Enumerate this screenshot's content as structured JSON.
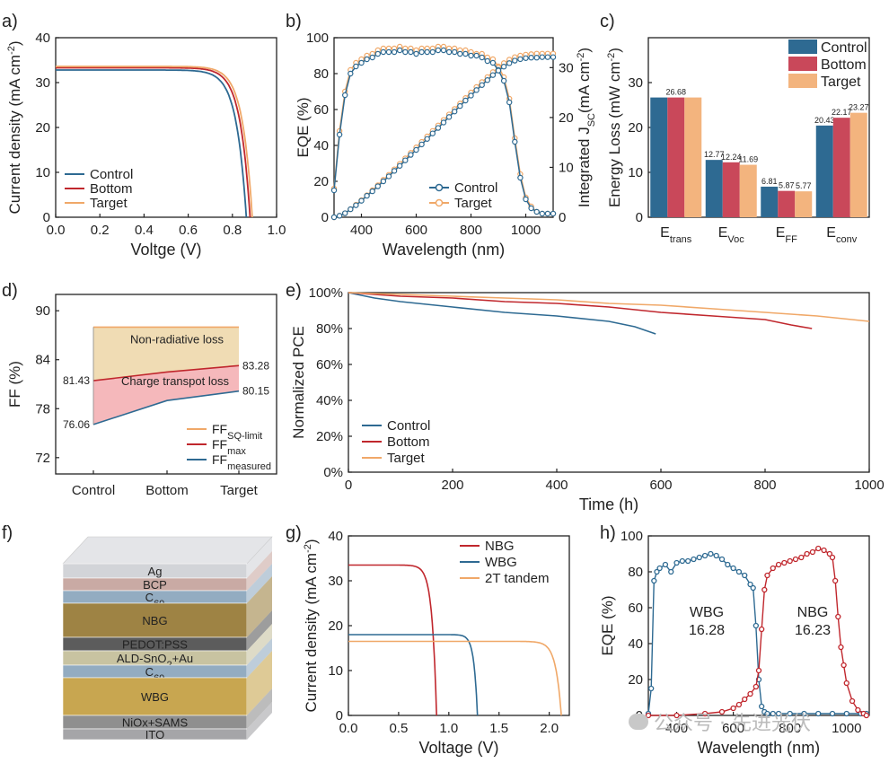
{
  "colors": {
    "control": "#2e6a92",
    "bottom": "#c0272d",
    "target": "#f0a868",
    "axis": "#222222"
  },
  "watermark": "公众号 · 先进光伏",
  "chart_data": [
    {
      "id": "a",
      "panel_label": "a)",
      "type": "line",
      "xlabel": "Voltge (V)",
      "ylabel_parts": [
        "Current density (mA cm",
        "-2",
        ")"
      ],
      "xlim": [
        0,
        1.0
      ],
      "ylim": [
        0,
        40
      ],
      "xticks": [
        "0.0",
        "0.2",
        "0.4",
        "0.6",
        "0.8",
        "1.0"
      ],
      "yticks": [
        "0",
        "10",
        "20",
        "30",
        "40"
      ],
      "legend": {
        "position": "bottom-left"
      },
      "series": [
        {
          "name": "Control",
          "color": "#2e6a92",
          "jsc": 32.8,
          "voc": 0.863,
          "knee": 0.68
        },
        {
          "name": "Bottom",
          "color": "#c0272d",
          "jsc": 33.3,
          "voc": 0.88,
          "knee": 0.72
        },
        {
          "name": "Target",
          "color": "#f0a868",
          "jsc": 33.6,
          "voc": 0.89,
          "knee": 0.75
        }
      ]
    },
    {
      "id": "b",
      "panel_label": "b)",
      "type": "line",
      "xlabel": "Wavelength (nm)",
      "ylabel": "EQE (%)",
      "y2label_parts": [
        "Integrated J",
        "SC",
        "(mA cm",
        "-2",
        ")"
      ],
      "xlim": [
        300,
        1100
      ],
      "ylim": [
        0,
        100
      ],
      "y2lim": [
        0,
        36
      ],
      "xticks": [
        "400",
        "600",
        "800",
        "1000"
      ],
      "yticks": [
        "0",
        "20",
        "40",
        "60",
        "80",
        "100"
      ],
      "y2ticks": [
        "0",
        "10",
        "20",
        "30"
      ],
      "legend": {
        "position": "bottom-right"
      },
      "series": [
        {
          "name": "Control",
          "color": "#2e6a92",
          "eqe_x": [
            300,
            320,
            340,
            360,
            380,
            400,
            420,
            440,
            460,
            480,
            500,
            520,
            540,
            560,
            580,
            600,
            620,
            640,
            660,
            680,
            700,
            720,
            740,
            760,
            780,
            800,
            820,
            840,
            860,
            880,
            900,
            920,
            940,
            960,
            980,
            1000,
            1020,
            1040,
            1060,
            1080,
            1100
          ],
          "eqe_y": [
            15,
            46,
            68,
            80,
            84,
            86,
            88,
            89,
            91,
            92,
            92,
            92,
            93,
            92,
            92,
            91,
            92,
            92,
            92,
            93,
            93,
            92,
            92,
            91,
            91,
            90,
            90,
            89,
            87,
            86,
            82,
            76,
            64,
            42,
            22,
            10,
            5,
            3,
            2,
            2,
            2
          ],
          "jsc_y": [
            0,
            0.3,
            0.8,
            1.6,
            2.4,
            3.3,
            4.3,
            5.2,
            6.2,
            7.2,
            8.2,
            9.3,
            10.3,
            11.4,
            12.5,
            13.5,
            14.6,
            15.7,
            16.8,
            17.9,
            19.0,
            20.1,
            21.2,
            22.3,
            23.4,
            24.4,
            25.5,
            26.5,
            27.5,
            28.5,
            29.4,
            30.2,
            30.9,
            31.4,
            31.7,
            31.9,
            32.0,
            32.0,
            32.1,
            32.1,
            32.1
          ]
        },
        {
          "name": "Target",
          "color": "#f0a868",
          "eqe_y": [
            16,
            48,
            70,
            82,
            86,
            88,
            90,
            91,
            93,
            94,
            94,
            94,
            95,
            94,
            94,
            93,
            94,
            94,
            94,
            95,
            95,
            94,
            94,
            93,
            93,
            92,
            91,
            91,
            89,
            88,
            84,
            78,
            66,
            44,
            24,
            11,
            6,
            3,
            2,
            2,
            2
          ],
          "jsc_y": [
            0,
            0.3,
            0.8,
            1.6,
            2.5,
            3.4,
            4.4,
            5.4,
            6.4,
            7.5,
            8.5,
            9.6,
            10.7,
            11.8,
            12.9,
            14.0,
            15.1,
            16.2,
            17.3,
            18.4,
            19.5,
            20.6,
            21.7,
            22.8,
            23.9,
            25.0,
            26.1,
            27.1,
            28.1,
            29.1,
            30.0,
            30.9,
            31.6,
            32.1,
            32.4,
            32.6,
            32.7,
            32.8,
            32.8,
            32.8,
            32.8
          ]
        }
      ]
    },
    {
      "id": "c",
      "panel_label": "c)",
      "type": "bar",
      "ylabel_parts": [
        "Energy Loss (mW cm",
        "-2",
        ")"
      ],
      "ylim": [
        0,
        40
      ],
      "yticks": [
        "0",
        "10",
        "20",
        "30"
      ],
      "categories": [
        {
          "main": "E",
          "sub": "trans"
        },
        {
          "main": "E",
          "sub": "Voc"
        },
        {
          "main": "E",
          "sub": "FF"
        },
        {
          "main": "E",
          "sub": "conv"
        }
      ],
      "legend": {
        "position": "top-right"
      },
      "series": [
        {
          "name": "Control",
          "color": "#2e6a92",
          "values": [
            26.68,
            12.77,
            6.81,
            20.43
          ],
          "labels": [
            "",
            "12.77",
            "6.81",
            "20.43"
          ]
        },
        {
          "name": "Bottom",
          "color": "#c9485a",
          "values": [
            26.68,
            12.24,
            5.87,
            22.17
          ],
          "labels": [
            "26.68",
            "12.24",
            "5.87",
            "22.17"
          ]
        },
        {
          "name": "Target",
          "color": "#f3b47e",
          "values": [
            26.68,
            11.69,
            5.77,
            23.27
          ],
          "labels": [
            "",
            "11.69",
            "5.77",
            "23.27"
          ]
        }
      ]
    },
    {
      "id": "d",
      "panel_label": "d)",
      "type": "area",
      "ylabel": "FF (%)",
      "ylim": [
        70,
        92
      ],
      "yticks": [
        "72",
        "78",
        "84",
        "90"
      ],
      "categories": [
        "Control",
        "Bottom",
        "Target"
      ],
      "series": [
        {
          "name": "FF",
          "sub": "SQ-limit",
          "color": "#f0a868",
          "values": [
            88.0,
            88.0,
            88.0
          ]
        },
        {
          "name": "FF",
          "sub": "max",
          "color": "#c0272d",
          "values": [
            81.43,
            82.5,
            83.28
          ]
        },
        {
          "name": "FF",
          "sub": "measured",
          "color": "#2e6a92",
          "values": [
            76.06,
            79.0,
            80.15
          ]
        }
      ],
      "annotations": {
        "nonrad": "Non-radiative loss",
        "charge": "Charge transpot loss",
        "left_max": "81.43",
        "left_meas": "76.06",
        "right_max": "83.28",
        "right_meas": "80.15"
      },
      "legend": {
        "position": "bottom-right"
      }
    },
    {
      "id": "e",
      "panel_label": "e)",
      "type": "line",
      "xlabel": "Time (h)",
      "ylabel": "Normalized PCE",
      "xlim": [
        0,
        1000
      ],
      "ylim": [
        0,
        100
      ],
      "xticks": [
        "0",
        "200",
        "400",
        "600",
        "800",
        "1000"
      ],
      "yticks": [
        "0%",
        "20%",
        "40%",
        "60%",
        "80%",
        "100%"
      ],
      "legend": {
        "position": "bottom-left"
      },
      "series": [
        {
          "name": "Control",
          "color": "#2e6a92",
          "x": [
            0,
            50,
            100,
            200,
            300,
            400,
            500,
            550,
            590
          ],
          "y": [
            100,
            97,
            95,
            92,
            89,
            87,
            84,
            81,
            77
          ]
        },
        {
          "name": "Bottom",
          "color": "#c0272d",
          "x": [
            0,
            100,
            200,
            300,
            400,
            500,
            600,
            700,
            800,
            850,
            890
          ],
          "y": [
            100,
            98,
            97,
            95,
            94,
            92,
            89,
            87,
            85,
            82,
            80
          ]
        },
        {
          "name": "Target",
          "color": "#f0a868",
          "x": [
            0,
            100,
            200,
            300,
            400,
            500,
            600,
            700,
            800,
            900,
            1000
          ],
          "y": [
            100,
            99,
            98,
            97,
            96,
            94,
            93,
            91,
            89,
            87,
            84
          ]
        }
      ]
    },
    {
      "id": "g",
      "panel_label": "g)",
      "type": "line",
      "xlabel": "Voltage (V)",
      "ylabel_parts": [
        "Current density (mA cm",
        "-2",
        ")"
      ],
      "xlim": [
        0,
        2.2
      ],
      "ylim": [
        0,
        40
      ],
      "xticks": [
        "0.0",
        "0.5",
        "1.0",
        "1.5",
        "2.0"
      ],
      "yticks": [
        "0",
        "10",
        "20",
        "30",
        "40"
      ],
      "legend": {
        "position": "top-right"
      },
      "series": [
        {
          "name": "NBG",
          "color": "#c0272d",
          "jsc": 33.5,
          "voc": 0.878,
          "knee": 0.7
        },
        {
          "name": "WBG",
          "color": "#2e6a92",
          "jsc": 18.0,
          "voc": 1.285,
          "knee": 1.1
        },
        {
          "name": "2T tandem",
          "color": "#f0a868",
          "jsc": 16.5,
          "voc": 2.12,
          "knee": 1.8
        }
      ]
    },
    {
      "id": "h",
      "panel_label": "h)",
      "type": "scatter",
      "xlabel": "Wavelength (nm)",
      "ylabel": "EQE (%)",
      "xlim": [
        300,
        1080
      ],
      "ylim": [
        0,
        100
      ],
      "xticks": [
        "400",
        "600",
        "800",
        "1000"
      ],
      "yticks": [
        "0",
        "20",
        "40",
        "60",
        "80",
        "100"
      ],
      "annotations": [
        {
          "title": "WBG",
          "value": "16.28"
        },
        {
          "title": "NBG",
          "value": "16.23"
        }
      ],
      "series": [
        {
          "name": "WBG",
          "color": "#2e6a92",
          "x": [
            300,
            310,
            320,
            330,
            340,
            360,
            380,
            400,
            420,
            440,
            460,
            480,
            500,
            520,
            540,
            560,
            580,
            600,
            620,
            640,
            660,
            670,
            680,
            690,
            700,
            710,
            720,
            740,
            760,
            800,
            850,
            900,
            950,
            1000,
            1050,
            1070
          ],
          "y": [
            1,
            15,
            75,
            80,
            82,
            84,
            80,
            85,
            86,
            86,
            87,
            88,
            89,
            90,
            89,
            87,
            84,
            82,
            80,
            78,
            73,
            71,
            50,
            20,
            5,
            2,
            1,
            1,
            1,
            1,
            1,
            1,
            1,
            1,
            1,
            1
          ]
        },
        {
          "name": "NBG",
          "color": "#c0272d",
          "x": [
            300,
            400,
            500,
            560,
            600,
            620,
            640,
            660,
            680,
            690,
            700,
            710,
            720,
            740,
            760,
            780,
            800,
            820,
            840,
            860,
            880,
            900,
            920,
            940,
            950,
            960,
            970,
            980,
            990,
            1000,
            1020,
            1040,
            1060,
            1070
          ],
          "y": [
            0,
            0,
            1,
            2,
            4,
            6,
            9,
            12,
            16,
            25,
            48,
            70,
            78,
            82,
            84,
            85,
            86,
            87,
            88,
            90,
            91,
            93,
            92,
            90,
            88,
            75,
            55,
            38,
            28,
            18,
            8,
            3,
            1,
            0
          ]
        }
      ]
    },
    {
      "id": "f",
      "panel_label": "f)",
      "type": "diagram",
      "layers": [
        {
          "label": "Ag",
          "color": "#d2d4d8",
          "thick": 16
        },
        {
          "label": "BCP",
          "color": "#c9aaa4",
          "thick": 14
        },
        {
          "label": "C60",
          "label_main": "C",
          "label_sub": "60",
          "color": "#93acc1",
          "thick": 14
        },
        {
          "label": "NBG",
          "color": "#9e8344",
          "thick": 38
        },
        {
          "label": "PEDOT:PSS",
          "color": "#5c5c5c",
          "thick": 15,
          "dark": true
        },
        {
          "label": "ALD-SnO2+Au",
          "label_main": "ALD-SnO",
          "label_sub": "2",
          "label_tail": "+Au",
          "color": "#c8c3a1",
          "thick": 16
        },
        {
          "label": "C60",
          "label_main": "C",
          "label_sub": "60",
          "color": "#93acc1",
          "thick": 14
        },
        {
          "label": "WBG",
          "color": "#c8a650",
          "thick": 42
        },
        {
          "label": "NiOx+SAMS",
          "color": "#8f8f8f",
          "thick": 15
        },
        {
          "label": "ITO",
          "color": "#a5a5a8",
          "thick": 12
        }
      ]
    }
  ]
}
